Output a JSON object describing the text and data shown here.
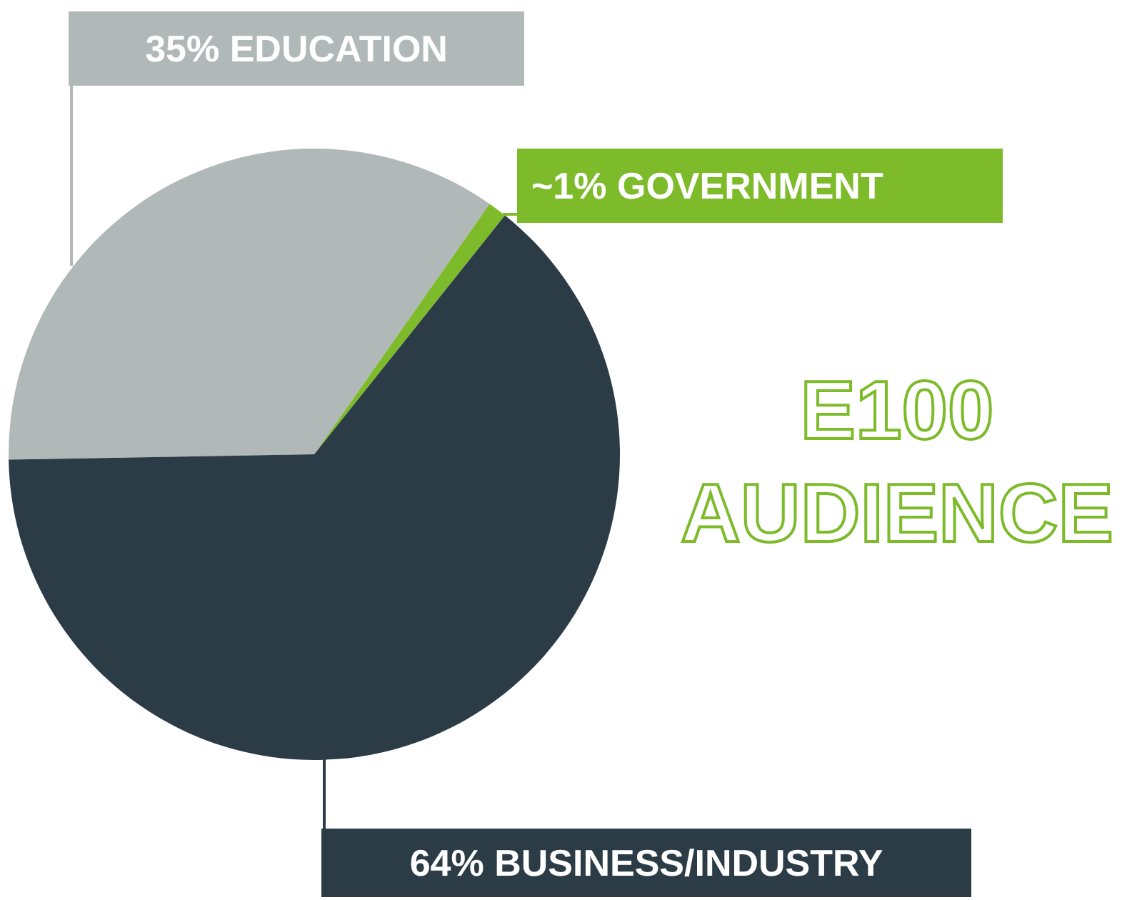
{
  "chart_data": {
    "type": "pie",
    "title": "E100 AUDIENCE",
    "categories": [
      "EDUCATION",
      "GOVERNMENT",
      "BUSINESS/INDUSTRY"
    ],
    "values": [
      35,
      1,
      64
    ],
    "value_labels": [
      "35%",
      "~1%",
      "64%"
    ],
    "colors": [
      "#b1b8b8",
      "#7dbb2a",
      "#2b3c46"
    ]
  }
}
